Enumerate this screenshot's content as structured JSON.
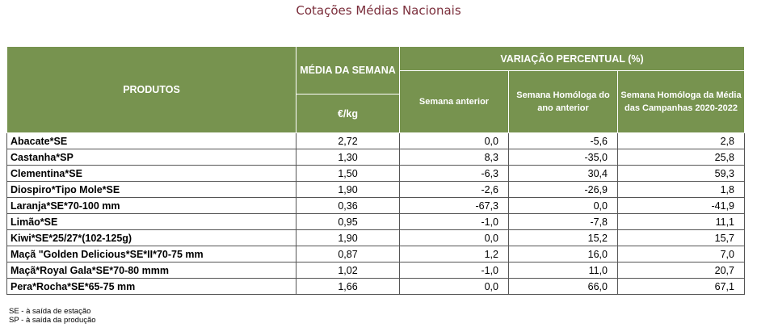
{
  "title": "Cotações Médias Nacionais",
  "header": {
    "produtos": "PRODUTOS",
    "media_semana": "MÉDIA DA SEMANA",
    "unit": "€/kg",
    "variacao": "VARIAÇÃO PERCENTUAL (%)",
    "semana_anterior": "Semana anterior",
    "homologa_ano": "Semana Homóloga do ano anterior",
    "homologa_media": "Semana Homóloga da Média das Campanhas 2020-2022"
  },
  "rows": [
    {
      "produto": "Abacate*SE",
      "media": "2,72",
      "anterior": "0,0",
      "homologa": "-5,6",
      "media_camp": "2,8"
    },
    {
      "produto": "Castanha*SP",
      "media": "1,30",
      "anterior": "8,3",
      "homologa": "-35,0",
      "media_camp": "25,8"
    },
    {
      "produto": "Clementina*SE",
      "media": "1,50",
      "anterior": "-6,3",
      "homologa": "30,4",
      "media_camp": "59,3"
    },
    {
      "produto": "Diospiro*Tipo Mole*SE",
      "media": "1,90",
      "anterior": "-2,6",
      "homologa": "-26,9",
      "media_camp": "1,8"
    },
    {
      "produto": "Laranja*SE*70-100 mm",
      "media": "0,36",
      "anterior": "-67,3",
      "homologa": "0,0",
      "media_camp": "-41,9"
    },
    {
      "produto": "Limão*SE",
      "media": "0,95",
      "anterior": "-1,0",
      "homologa": "-7,8",
      "media_camp": "11,1"
    },
    {
      "produto": "Kiwi*SE*25/27*(102-125g)",
      "media": "1,90",
      "anterior": "0,0",
      "homologa": "15,2",
      "media_camp": "15,7"
    },
    {
      "produto": "Maçã \"Golden Delicious*SE*II*70-75 mm",
      "media": "0,87",
      "anterior": "1,2",
      "homologa": "16,0",
      "media_camp": "7,0"
    },
    {
      "produto": "Maçã*Royal Gala*SE*70-80 mmm",
      "media": "1,02",
      "anterior": "-1,0",
      "homologa": "11,0",
      "media_camp": "20,7"
    },
    {
      "produto": "Pera*Rocha*SE*65-75 mm",
      "media": "1,66",
      "anterior": "0,0",
      "homologa": "66,0",
      "media_camp": "67,1"
    }
  ],
  "notes": [
    "SE - à saída de estação",
    "SP - à saída da produção"
  ]
}
